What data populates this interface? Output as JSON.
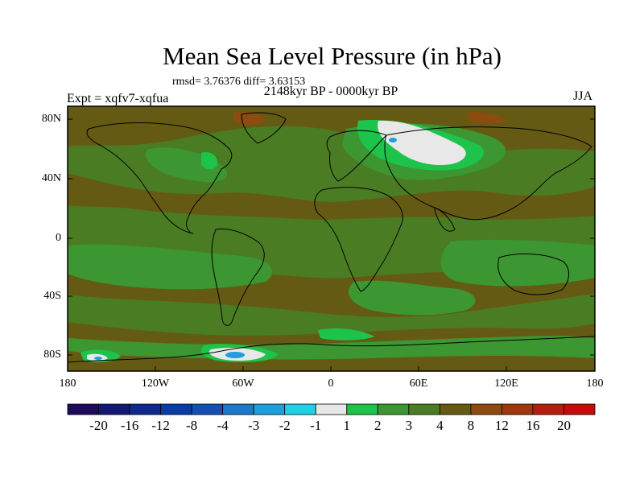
{
  "title": "Mean Sea Level Pressure (in hPa)",
  "stats_line": "rmsd= 3.76376 diff= 3.63153",
  "subtitle": "2148kyr BP - 0000kyr BP",
  "experiment": "Expt = xqfv7-xqfua",
  "season": "JJA",
  "map": {
    "projection": "cylindrical equidistant",
    "lon_range": [
      -180,
      180
    ],
    "lat_range": [
      -90,
      90
    ],
    "lat_ticks": [
      "80N",
      "40N",
      "0",
      "40S",
      "80S"
    ],
    "lon_ticks": [
      "180",
      "120W",
      "60W",
      "0",
      "60E",
      "120E",
      "180"
    ]
  },
  "colorbar": {
    "labels": [
      "-20",
      "-16",
      "-12",
      "-8",
      "-4",
      "-3",
      "-2",
      "-1",
      "1",
      "2",
      "3",
      "4",
      "8",
      "12",
      "16",
      "20"
    ],
    "colors": [
      "#1e0b5a",
      "#141873",
      "#0f2a8c",
      "#0a3ca5",
      "#1450b4",
      "#1e78c8",
      "#1ea0dc",
      "#1ed2e6",
      "#e8e8e8",
      "#1ec34b",
      "#3c9632",
      "#4a7d23",
      "#645a14",
      "#8c4b0f",
      "#a0370f",
      "#b41e0f",
      "#c80a0a"
    ]
  },
  "field_colors": {
    "base": "#4a7d23",
    "brown": "#645a14",
    "green": "#3c9632",
    "bright_green": "#1ec34b",
    "white": "#e8e8e8",
    "cyan": "#1ea0dc",
    "red_brown": "#8c4b0f"
  }
}
